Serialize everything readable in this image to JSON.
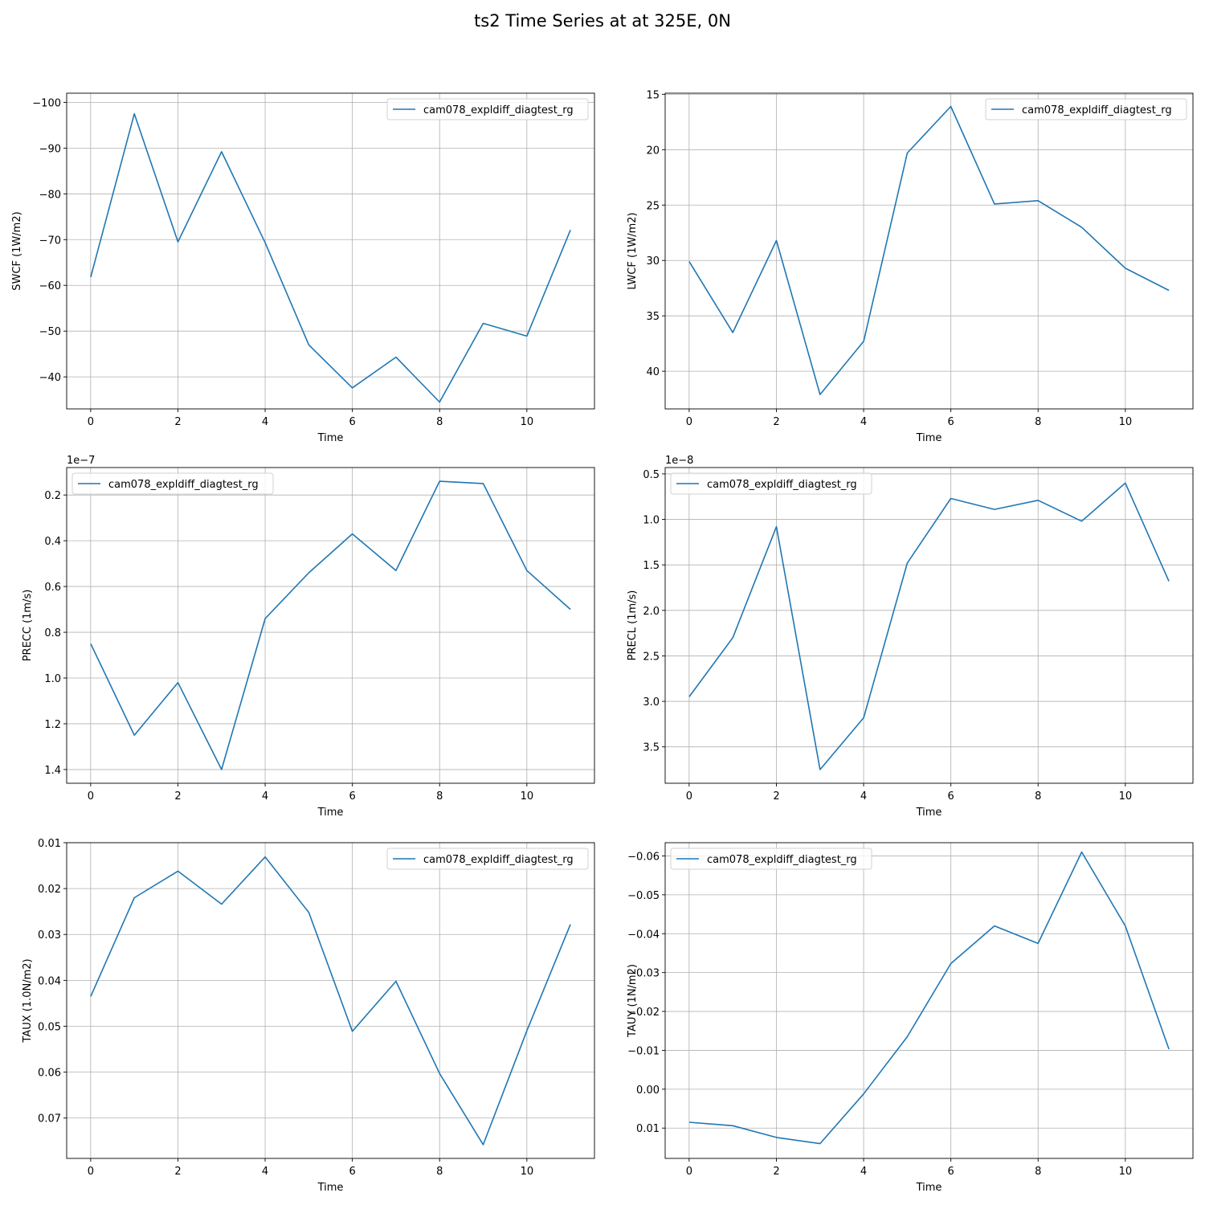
{
  "figure": {
    "title": "ts2 Time Series at at 325E, 0N"
  },
  "chart_data": [
    {
      "type": "line",
      "xlabel": "Time",
      "ylabel": "SWCF (1W/m2)",
      "y_inverted": true,
      "xlim": [
        -0.55,
        11.55
      ],
      "ylim": [
        -33,
        -102
      ],
      "xticks": [
        0,
        2,
        4,
        6,
        8,
        10
      ],
      "xtick_labels": [
        "0",
        "2",
        "4",
        "6",
        "8",
        "10"
      ],
      "yticks": [
        -100,
        -90,
        -80,
        -70,
        -60,
        -50,
        -40
      ],
      "ytick_labels": [
        "−100",
        "−90",
        "−80",
        "−70",
        "−60",
        "−50",
        "−40"
      ],
      "offset_text": "",
      "legend": {
        "position": "upper-right",
        "entries": [
          "cam078_expldiff_diagtest_rg"
        ]
      },
      "grid": true,
      "series": [
        {
          "name": "cam078_expldiff_diagtest_rg",
          "color": "#1f77b4",
          "x": [
            0,
            1,
            2,
            3,
            4,
            5,
            6,
            7,
            8,
            9,
            10,
            11
          ],
          "y": [
            -61.8,
            -97.5,
            -69.5,
            -89.2,
            -69.3,
            -47.0,
            -37.6,
            -44.3,
            -34.5,
            -51.7,
            -48.9,
            -72.1
          ]
        }
      ]
    },
    {
      "type": "line",
      "xlabel": "Time",
      "ylabel": "LWCF (1W/m2)",
      "y_inverted": true,
      "xlim": [
        -0.55,
        11.55
      ],
      "ylim": [
        43.4,
        14.9
      ],
      "xticks": [
        0,
        2,
        4,
        6,
        8,
        10
      ],
      "xtick_labels": [
        "0",
        "2",
        "4",
        "6",
        "8",
        "10"
      ],
      "yticks": [
        15,
        20,
        25,
        30,
        35,
        40
      ],
      "ytick_labels": [
        "15",
        "20",
        "25",
        "30",
        "35",
        "40"
      ],
      "offset_text": "",
      "legend": {
        "position": "upper-right",
        "entries": [
          "cam078_expldiff_diagtest_rg"
        ]
      },
      "grid": true,
      "series": [
        {
          "name": "cam078_expldiff_diagtest_rg",
          "color": "#1f77b4",
          "x": [
            0,
            1,
            2,
            3,
            4,
            5,
            6,
            7,
            8,
            9,
            10,
            11
          ],
          "y": [
            30.1,
            36.5,
            28.2,
            42.1,
            37.3,
            20.3,
            16.1,
            24.9,
            24.6,
            27.0,
            30.7,
            32.7
          ]
        }
      ]
    },
    {
      "type": "line",
      "xlabel": "Time",
      "ylabel": "PRECC (1m/s)",
      "y_inverted": true,
      "xlim": [
        -0.55,
        11.55
      ],
      "ylim": [
        1.46,
        0.08
      ],
      "xticks": [
        0,
        2,
        4,
        6,
        8,
        10
      ],
      "xtick_labels": [
        "0",
        "2",
        "4",
        "6",
        "8",
        "10"
      ],
      "yticks": [
        0.2,
        0.4,
        0.6,
        0.8,
        1.0,
        1.2,
        1.4
      ],
      "ytick_labels": [
        "0.2",
        "0.4",
        "0.6",
        "0.8",
        "1.0",
        "1.2",
        "1.4"
      ],
      "offset_text": "1e−7",
      "legend": {
        "position": "upper-left",
        "entries": [
          "cam078_expldiff_diagtest_rg"
        ]
      },
      "grid": true,
      "series": [
        {
          "name": "cam078_expldiff_diagtest_rg",
          "color": "#1f77b4",
          "x": [
            0,
            1,
            2,
            3,
            4,
            5,
            6,
            7,
            8,
            9,
            10,
            11
          ],
          "y": [
            0.85,
            1.25,
            1.02,
            1.4,
            0.74,
            0.54,
            0.37,
            0.53,
            0.14,
            0.15,
            0.53,
            0.7
          ]
        }
      ]
    },
    {
      "type": "line",
      "xlabel": "Time",
      "ylabel": "PRECL (1m/s)",
      "y_inverted": true,
      "xlim": [
        -0.55,
        11.55
      ],
      "ylim": [
        3.9,
        0.43
      ],
      "xticks": [
        0,
        2,
        4,
        6,
        8,
        10
      ],
      "xtick_labels": [
        "0",
        "2",
        "4",
        "6",
        "8",
        "10"
      ],
      "yticks": [
        0.5,
        1.0,
        1.5,
        2.0,
        2.5,
        3.0,
        3.5
      ],
      "ytick_labels": [
        "0.5",
        "1.0",
        "1.5",
        "2.0",
        "2.5",
        "3.0",
        "3.5"
      ],
      "offset_text": "1e−8",
      "legend": {
        "position": "upper-left",
        "entries": [
          "cam078_expldiff_diagtest_rg"
        ]
      },
      "grid": true,
      "series": [
        {
          "name": "cam078_expldiff_diagtest_rg",
          "color": "#1f77b4",
          "x": [
            0,
            1,
            2,
            3,
            4,
            5,
            6,
            7,
            8,
            9,
            10,
            11
          ],
          "y": [
            2.95,
            2.3,
            1.08,
            3.75,
            3.18,
            1.48,
            0.77,
            0.89,
            0.79,
            1.02,
            0.6,
            1.68
          ]
        }
      ]
    },
    {
      "type": "line",
      "xlabel": "Time",
      "ylabel": "TAUX (1.0N/m2)",
      "y_inverted": true,
      "xlim": [
        -0.55,
        11.55
      ],
      "ylim": [
        0.0788,
        0.01
      ],
      "xticks": [
        0,
        2,
        4,
        6,
        8,
        10
      ],
      "xtick_labels": [
        "0",
        "2",
        "4",
        "6",
        "8",
        "10"
      ],
      "yticks": [
        0.01,
        0.02,
        0.03,
        0.04,
        0.05,
        0.06,
        0.07
      ],
      "ytick_labels": [
        "0.01",
        "0.02",
        "0.03",
        "0.04",
        "0.05",
        "0.06",
        "0.07"
      ],
      "offset_text": "",
      "legend": {
        "position": "upper-right",
        "entries": [
          "cam078_expldiff_diagtest_rg"
        ]
      },
      "grid": true,
      "series": [
        {
          "name": "cam078_expldiff_diagtest_rg",
          "color": "#1f77b4",
          "x": [
            0,
            1,
            2,
            3,
            4,
            5,
            6,
            7,
            8,
            9,
            10,
            11
          ],
          "y": [
            0.0435,
            0.022,
            0.0162,
            0.0234,
            0.0131,
            0.0252,
            0.0511,
            0.0402,
            0.0603,
            0.0758,
            0.051,
            0.0278
          ]
        }
      ]
    },
    {
      "type": "line",
      "xlabel": "Time",
      "ylabel": "TAUY (1N/m2)",
      "y_inverted": true,
      "xlim": [
        -0.55,
        11.55
      ],
      "ylim": [
        0.0178,
        -0.0634
      ],
      "xticks": [
        0,
        2,
        4,
        6,
        8,
        10
      ],
      "xtick_labels": [
        "0",
        "2",
        "4",
        "6",
        "8",
        "10"
      ],
      "yticks": [
        -0.06,
        -0.05,
        -0.04,
        -0.03,
        -0.02,
        -0.01,
        0.0,
        0.01
      ],
      "ytick_labels": [
        "−0.06",
        "−0.05",
        "−0.04",
        "−0.03",
        "−0.02",
        "−0.01",
        "0.00",
        "0.01"
      ],
      "offset_text": "",
      "legend": {
        "position": "upper-left",
        "entries": [
          "cam078_expldiff_diagtest_rg"
        ]
      },
      "grid": true,
      "series": [
        {
          "name": "cam078_expldiff_diagtest_rg",
          "color": "#1f77b4",
          "x": [
            0,
            1,
            2,
            3,
            4,
            5,
            6,
            7,
            8,
            9,
            10,
            11
          ],
          "y": [
            0.0085,
            0.0094,
            0.0124,
            0.014,
            0.0012,
            -0.0135,
            -0.0323,
            -0.042,
            -0.0375,
            -0.061,
            -0.042,
            -0.0103
          ]
        }
      ]
    }
  ]
}
